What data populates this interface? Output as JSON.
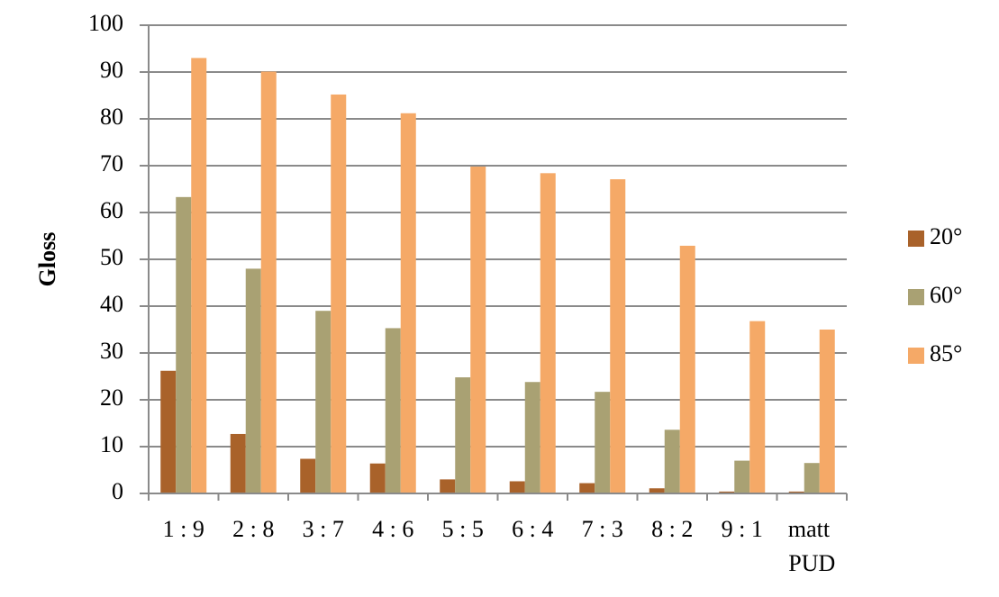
{
  "chart_data": {
    "type": "bar",
    "y_label": "Gloss",
    "categories": [
      "1 : 9",
      "2 : 8",
      "3 : 7",
      "4 : 6",
      "5 : 5",
      "6 : 4",
      "7 : 3",
      "8 : 2",
      "9 : 1",
      "matt PUD"
    ],
    "series": [
      {
        "name": "20°",
        "color": "#a9622a",
        "values": [
          26.2,
          12.7,
          7.4,
          6.4,
          3.0,
          2.6,
          2.2,
          1.1,
          0.4,
          0.4
        ]
      },
      {
        "name": "60°",
        "color": "#a9a173",
        "values": [
          63.3,
          48.0,
          39.0,
          35.3,
          24.8,
          23.8,
          21.7,
          13.6,
          7.0,
          6.5
        ]
      },
      {
        "name": "85°",
        "color": "#f5a967",
        "values": [
          93.0,
          90.1,
          85.2,
          81.2,
          69.8,
          68.4,
          67.1,
          52.9,
          36.8,
          35.0
        ]
      }
    ],
    "ylim": [
      0,
      100
    ],
    "yticks": [
      0,
      10,
      20,
      30,
      40,
      50,
      60,
      70,
      80,
      90,
      100
    ],
    "grid": true,
    "legend": "right"
  }
}
